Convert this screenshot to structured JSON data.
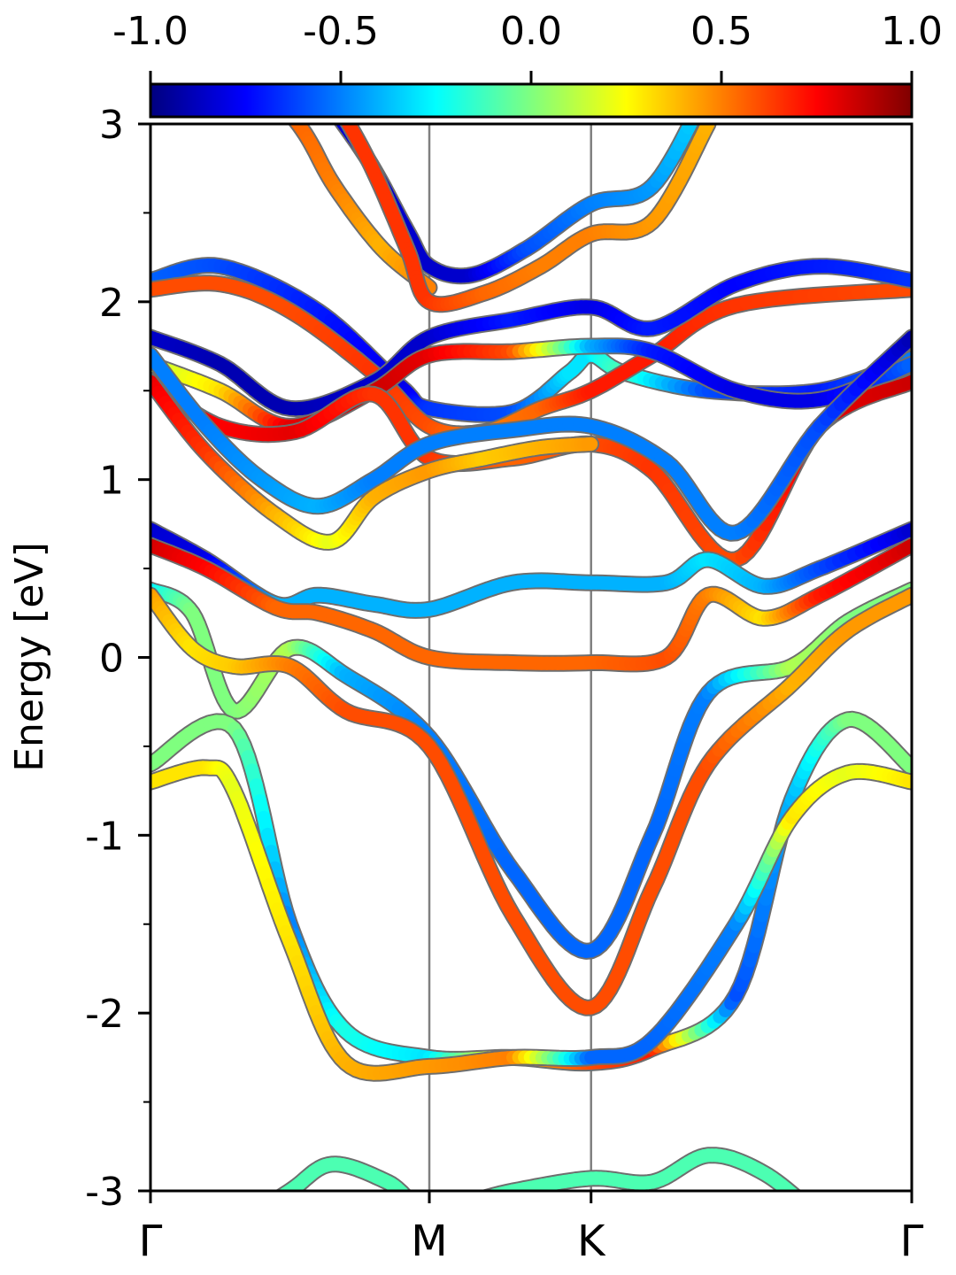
{
  "chart_data": {
    "type": "line",
    "ylabel": "Energy [eV]",
    "ylim": [
      -3,
      3
    ],
    "yticks": [
      -3,
      -2,
      -1,
      0,
      1,
      2,
      3
    ],
    "ytick_labels": [
      "-3",
      "-2",
      "-1",
      "0",
      "1",
      "2",
      "3"
    ],
    "xlim": [
      0,
      2.73
    ],
    "kpoints": [
      {
        "label": "Γ",
        "x": 0
      },
      {
        "label": "M",
        "x": 1.0
      },
      {
        "label": "K",
        "x": 1.58
      },
      {
        "label": "Γ",
        "x": 2.73
      }
    ],
    "colorbar": {
      "range": [
        -1.0,
        1.0
      ],
      "ticks": [
        -1.0,
        -0.5,
        0.0,
        0.5,
        1.0
      ],
      "tick_labels": [
        "-1.0",
        "-0.5",
        "0.0",
        "0.5",
        "1.0"
      ],
      "colormap": "jet",
      "stops": [
        "#00007f",
        "#0000ff",
        "#007fff",
        "#00ffff",
        "#7fff7f",
        "#ffff00",
        "#ff7f00",
        "#ff0000",
        "#7f0000"
      ]
    },
    "series": [
      {
        "x": [
          0,
          0.3,
          0.53,
          0.66,
          0.83,
          1.0
        ],
        "y": [
          3.8,
          3.4,
          3.0,
          2.65,
          2.3,
          2.08
        ],
        "c": [
          0.6,
          0.6,
          0.55,
          0.5,
          0.4,
          0.5
        ]
      },
      {
        "x": [
          0.6,
          0.78,
          0.92,
          1.0,
          1.15,
          1.35,
          1.58,
          1.8,
          2.0
        ],
        "y": [
          3.2,
          2.8,
          2.4,
          2.2,
          2.15,
          2.3,
          2.55,
          2.65,
          3.2
        ],
        "c": [
          -0.8,
          -0.85,
          -0.85,
          -0.85,
          -0.85,
          -0.6,
          -0.5,
          -0.45,
          -0.3
        ]
      },
      {
        "x": [
          0.6,
          0.78,
          0.92,
          1.0,
          1.2,
          1.4,
          1.58,
          1.8,
          2.0
        ],
        "y": [
          3.3,
          2.8,
          2.3,
          2.0,
          2.05,
          2.2,
          2.38,
          2.45,
          3.0
        ],
        "c": [
          0.65,
          0.65,
          0.65,
          0.65,
          0.55,
          0.5,
          0.5,
          0.45,
          0.4
        ]
      },
      {
        "x": [
          0,
          0.25,
          0.6,
          0.9,
          1.0,
          1.3,
          1.5,
          1.58,
          1.7,
          2.0,
          2.4,
          2.73
        ],
        "y": [
          2.12,
          2.2,
          1.95,
          1.52,
          1.4,
          1.38,
          1.6,
          1.7,
          1.6,
          1.5,
          1.5,
          1.68
        ],
        "c": [
          -0.55,
          -0.6,
          -0.7,
          -0.8,
          -0.65,
          -0.6,
          -0.3,
          -0.3,
          -0.1,
          -0.6,
          -0.7,
          -0.5
        ]
      },
      {
        "x": [
          0,
          0.25,
          0.5,
          0.8,
          1.0,
          1.2,
          1.4,
          1.58,
          1.8,
          2.1,
          2.73
        ],
        "y": [
          2.07,
          2.1,
          1.95,
          1.6,
          1.3,
          1.27,
          1.4,
          1.5,
          1.7,
          1.98,
          2.07
        ],
        "c": [
          0.6,
          0.6,
          0.6,
          0.65,
          0.6,
          0.5,
          0.55,
          0.7,
          0.7,
          0.65,
          0.6
        ]
      },
      {
        "x": [
          0,
          0.25,
          0.5,
          0.8,
          1.0,
          1.3,
          1.58,
          1.8,
          2.1,
          2.4,
          2.73
        ],
        "y": [
          1.8,
          1.65,
          1.4,
          1.55,
          1.8,
          1.9,
          1.97,
          1.85,
          2.1,
          2.2,
          2.12
        ],
        "c": [
          -0.85,
          -0.9,
          -0.9,
          -0.85,
          -0.85,
          -0.7,
          -0.8,
          -0.7,
          -0.75,
          -0.7,
          -0.65
        ]
      },
      {
        "x": [
          0,
          0.25,
          0.5,
          0.8,
          1.0,
          1.3,
          1.58,
          1.8,
          2.1,
          2.4,
          2.73
        ],
        "y": [
          1.65,
          1.5,
          1.3,
          1.5,
          1.7,
          1.72,
          1.75,
          1.72,
          1.5,
          1.45,
          1.65
        ],
        "c": [
          0.1,
          0.3,
          0.8,
          0.85,
          0.8,
          0.6,
          -0.4,
          -0.7,
          -0.8,
          -0.8,
          -0.55
        ]
      },
      {
        "x": [
          0,
          0.25,
          0.52,
          0.8,
          1.0,
          1.3,
          1.58,
          1.8,
          2.1,
          2.4,
          2.73
        ],
        "y": [
          1.55,
          1.3,
          1.27,
          1.48,
          1.12,
          1.12,
          1.2,
          1.05,
          0.55,
          1.3,
          1.55
        ],
        "c": [
          0.8,
          0.75,
          0.8,
          0.65,
          0.65,
          0.55,
          0.6,
          0.65,
          0.6,
          0.8,
          0.85
        ]
      },
      {
        "x": [
          0,
          0.2,
          0.4,
          0.6,
          0.8,
          1.0,
          1.3,
          1.58,
          1.85,
          2.1,
          2.4,
          2.73
        ],
        "y": [
          1.7,
          1.3,
          1.0,
          0.85,
          1.0,
          1.2,
          1.28,
          1.3,
          1.1,
          0.7,
          1.3,
          1.8
        ],
        "c": [
          -0.5,
          -0.5,
          -0.45,
          -0.4,
          -0.5,
          -0.5,
          -0.5,
          -0.5,
          -0.5,
          -0.5,
          -0.6,
          -0.9
        ]
      },
      {
        "x": [
          0,
          0.2,
          0.45,
          0.65,
          0.8,
          1.0,
          1.2,
          1.4,
          1.58
        ],
        "y": [
          1.55,
          1.15,
          0.8,
          0.65,
          0.9,
          1.05,
          1.12,
          1.18,
          1.2
        ],
        "c": [
          0.8,
          0.65,
          0.4,
          0.2,
          0.4,
          0.45,
          0.35,
          0.4,
          0.45
        ]
      },
      {
        "x": [
          0,
          0.2,
          0.45,
          0.6,
          0.8,
          1.0,
          1.3,
          1.58,
          1.85,
          2.0,
          2.2,
          2.4,
          2.73
        ],
        "y": [
          0.72,
          0.55,
          0.3,
          0.35,
          0.3,
          0.27,
          0.42,
          0.42,
          0.42,
          0.55,
          0.4,
          0.5,
          0.72
        ],
        "c": [
          -0.85,
          -0.8,
          -0.4,
          -0.4,
          -0.4,
          -0.4,
          -0.4,
          -0.4,
          -0.4,
          -0.3,
          -0.4,
          -0.6,
          -0.85
        ]
      },
      {
        "x": [
          0,
          0.2,
          0.45,
          0.6,
          0.8,
          1.0,
          1.3,
          1.58,
          1.85,
          2.0,
          2.2,
          2.4,
          2.73
        ],
        "y": [
          0.63,
          0.5,
          0.28,
          0.25,
          0.15,
          0.0,
          -0.03,
          -0.03,
          0.0,
          0.35,
          0.22,
          0.35,
          0.63
        ],
        "c": [
          0.85,
          0.75,
          0.55,
          0.55,
          0.55,
          0.55,
          0.55,
          0.55,
          0.6,
          0.5,
          0.3,
          0.7,
          0.85
        ]
      },
      {
        "x": [
          0,
          0.15,
          0.3,
          0.5,
          0.7,
          1.0,
          1.3,
          1.58,
          1.8,
          2.0,
          2.3,
          2.5,
          2.73
        ],
        "y": [
          0.38,
          0.25,
          -0.3,
          0.05,
          -0.1,
          -0.45,
          -1.2,
          -1.65,
          -1.0,
          -0.2,
          -0.05,
          0.2,
          0.38
        ],
        "c": [
          -0.3,
          0.0,
          0.0,
          0.1,
          -0.4,
          -0.5,
          -0.55,
          -0.55,
          -0.55,
          -0.5,
          0.1,
          0.0,
          0.0
        ]
      },
      {
        "x": [
          0,
          0.15,
          0.3,
          0.5,
          0.7,
          1.0,
          1.3,
          1.58,
          1.8,
          2.0,
          2.3,
          2.5,
          2.73
        ],
        "y": [
          0.35,
          0.05,
          -0.05,
          -0.05,
          -0.3,
          -0.5,
          -1.45,
          -1.97,
          -1.3,
          -0.6,
          -0.15,
          0.15,
          0.35
        ],
        "c": [
          0.45,
          0.3,
          0.35,
          0.5,
          0.6,
          0.6,
          0.6,
          0.6,
          0.6,
          0.6,
          0.4,
          0.45,
          0.45
        ]
      },
      {
        "x": [
          0,
          0.3,
          0.5,
          0.7,
          1.0,
          1.3,
          1.58,
          1.8,
          2.1,
          2.3,
          2.5,
          2.73
        ],
        "y": [
          -0.6,
          -0.4,
          -1.5,
          -2.1,
          -2.25,
          -2.25,
          -2.28,
          -2.2,
          -1.9,
          -0.8,
          -0.35,
          -0.62
        ],
        "c": [
          0.0,
          0.0,
          -0.5,
          -0.2,
          -0.3,
          0.4,
          0.6,
          0.7,
          -0.6,
          -0.4,
          0.0,
          0.0
        ]
      },
      {
        "x": [
          0,
          0.2,
          0.3,
          0.5,
          0.7,
          1.0,
          1.3,
          1.58,
          1.8,
          2.1,
          2.3,
          2.5,
          2.73
        ],
        "y": [
          -0.7,
          -0.62,
          -0.75,
          -1.6,
          -2.28,
          -2.3,
          -2.25,
          -2.25,
          -2.15,
          -1.5,
          -0.9,
          -0.65,
          -0.7
        ],
        "c": [
          0.3,
          0.3,
          0.2,
          0.3,
          0.4,
          0.45,
          0.5,
          -0.55,
          -0.55,
          -0.5,
          0.3,
          0.2,
          0.3
        ]
      },
      {
        "x": [
          0.3,
          0.5,
          0.65,
          0.85,
          1.0,
          1.3,
          1.58,
          1.8,
          2.0,
          2.2,
          2.4
        ],
        "y": [
          -3.2,
          -3.0,
          -2.85,
          -2.95,
          -3.1,
          -3.0,
          -2.93,
          -2.95,
          -2.8,
          -2.9,
          -3.15
        ],
        "c": [
          -0.1,
          -0.1,
          -0.1,
          -0.1,
          -0.1,
          -0.1,
          -0.1,
          -0.1,
          -0.1,
          -0.1,
          -0.1
        ]
      }
    ]
  }
}
